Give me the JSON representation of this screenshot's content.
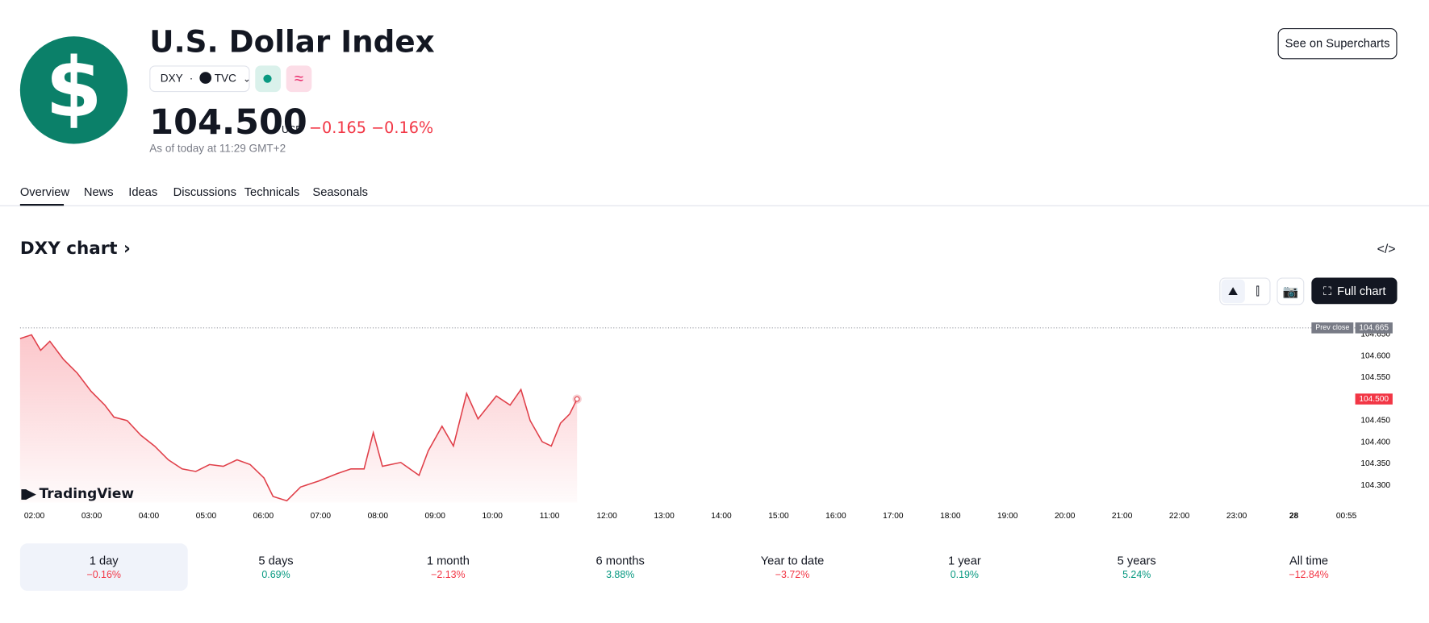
{
  "header": {
    "logo": "$",
    "title": "U.S. Dollar Index",
    "symbol": "DXY",
    "exchange": "TVC",
    "price": "104.500",
    "currency": "USD",
    "change": "−0.165",
    "change_percent": "−0.16%",
    "as_of": "As of today at 11:29 GMT+2",
    "button": "See on Supercharts"
  },
  "tabs": [
    "Overview",
    "News",
    "Ideas",
    "Discussions",
    "Technicals",
    "Seasonals"
  ],
  "chart_section": {
    "title": "DXY chart",
    "full_chart": "Full chart",
    "watermark": "TradingView",
    "chart_data": {
      "type": "line",
      "color": "#e0404a",
      "x": [
        1.75,
        1.95,
        2.11,
        2.27,
        2.51,
        2.75,
        2.99,
        3.23,
        3.39,
        3.62,
        3.86,
        4.1,
        4.34,
        4.58,
        4.82,
        5.06,
        5.3,
        5.54,
        5.77,
        6.01,
        6.17,
        6.41,
        6.65,
        6.97,
        7.29,
        7.53,
        7.76,
        7.92,
        8.08,
        8.4,
        8.72,
        8.88,
        9.12,
        9.32,
        9.55,
        9.75,
        10.07,
        10.31,
        10.5,
        10.66,
        10.87,
        11.03,
        11.19,
        11.35,
        11.48
      ],
      "values": [
        104.64,
        104.649,
        104.613,
        104.634,
        104.592,
        104.56,
        104.518,
        104.486,
        104.458,
        104.45,
        104.416,
        104.391,
        104.359,
        104.338,
        104.332,
        104.348,
        104.344,
        104.359,
        104.348,
        104.317,
        104.274,
        104.264,
        104.296,
        104.31,
        104.327,
        104.338,
        104.338,
        104.422,
        104.344,
        104.353,
        104.323,
        104.38,
        104.437,
        104.391,
        104.513,
        104.454,
        104.507,
        104.486,
        104.522,
        104.45,
        104.401,
        104.391,
        104.444,
        104.465,
        104.5
      ],
      "xlim": [
        1.75,
        25.12
      ],
      "ylim": [
        104.26,
        104.676
      ],
      "xticks": [
        {
          "value": 2,
          "label": "02:00"
        },
        {
          "value": 3,
          "label": "03:00"
        },
        {
          "value": 4,
          "label": "04:00"
        },
        {
          "value": 5,
          "label": "05:00"
        },
        {
          "value": 6,
          "label": "06:00"
        },
        {
          "value": 7,
          "label": "07:00"
        },
        {
          "value": 8,
          "label": "08:00"
        },
        {
          "value": 9,
          "label": "09:00"
        },
        {
          "value": 10,
          "label": "10:00"
        },
        {
          "value": 11,
          "label": "11:00"
        },
        {
          "value": 12,
          "label": "12:00"
        },
        {
          "value": 13,
          "label": "13:00"
        },
        {
          "value": 14,
          "label": "14:00"
        },
        {
          "value": 15,
          "label": "15:00"
        },
        {
          "value": 16,
          "label": "16:00"
        },
        {
          "value": 17,
          "label": "17:00"
        },
        {
          "value": 18,
          "label": "18:00"
        },
        {
          "value": 19,
          "label": "19:00"
        },
        {
          "value": 20,
          "label": "20:00"
        },
        {
          "value": 21,
          "label": "21:00"
        },
        {
          "value": 22,
          "label": "22:00"
        },
        {
          "value": 23,
          "label": "23:00"
        },
        {
          "value": 24,
          "label": "28"
        },
        {
          "value": 24.917,
          "label": "00:55"
        }
      ],
      "yticks": [
        {
          "value": 104.3,
          "label": "104.300"
        },
        {
          "value": 104.35,
          "label": "104.350"
        },
        {
          "value": 104.4,
          "label": "104.400"
        },
        {
          "value": 104.45,
          "label": "104.450"
        },
        {
          "value": 104.5,
          "label": "104.500"
        },
        {
          "value": 104.55,
          "label": "104.550"
        },
        {
          "value": 104.6,
          "label": "104.600"
        },
        {
          "value": 104.65,
          "label": "104.650"
        }
      ],
      "prev_close": {
        "label": "Prev close",
        "value": 104.665,
        "value_label": "104.665"
      }
    }
  },
  "performance": [
    {
      "period": "1 day",
      "change": "−0.16%"
    },
    {
      "period": "5 days",
      "change": "0.69%"
    },
    {
      "period": "1 month",
      "change": "−2.13%"
    },
    {
      "period": "6 months",
      "change": "3.88%"
    },
    {
      "period": "Year to date",
      "change": "−3.72%"
    },
    {
      "period": "1 year",
      "change": "0.19%"
    },
    {
      "period": "5 years",
      "change": "5.24%"
    },
    {
      "period": "All time",
      "change": "−12.84%"
    }
  ]
}
